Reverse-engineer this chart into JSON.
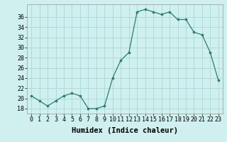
{
  "x": [
    0,
    1,
    2,
    3,
    4,
    5,
    6,
    7,
    8,
    9,
    10,
    11,
    12,
    13,
    14,
    15,
    16,
    17,
    18,
    19,
    20,
    21,
    22,
    23
  ],
  "y": [
    20.5,
    19.5,
    18.5,
    19.5,
    20.5,
    21.0,
    20.5,
    18.0,
    18.0,
    18.5,
    24.0,
    27.5,
    29.0,
    37.0,
    37.5,
    37.0,
    36.5,
    37.0,
    35.5,
    35.5,
    33.0,
    32.5,
    29.0,
    23.5
  ],
  "xlabel": "Humidex (Indice chaleur)",
  "xticks": [
    0,
    1,
    2,
    3,
    4,
    5,
    6,
    7,
    8,
    9,
    10,
    11,
    12,
    13,
    14,
    15,
    16,
    17,
    18,
    19,
    20,
    21,
    22,
    23
  ],
  "xlim": [
    -0.5,
    23.5
  ],
  "ylim": [
    17.0,
    38.5
  ],
  "yticks": [
    18,
    20,
    22,
    24,
    26,
    28,
    30,
    32,
    34,
    36
  ],
  "line_color": "#2e7d6e",
  "marker_color": "#2e7d6e",
  "bg_color": "#cff0ee",
  "grid_color": "#aad8d4",
  "tick_fontsize": 6.0,
  "xlabel_fontsize": 7.5,
  "figwidth": 3.2,
  "figheight": 2.0,
  "dpi": 100
}
